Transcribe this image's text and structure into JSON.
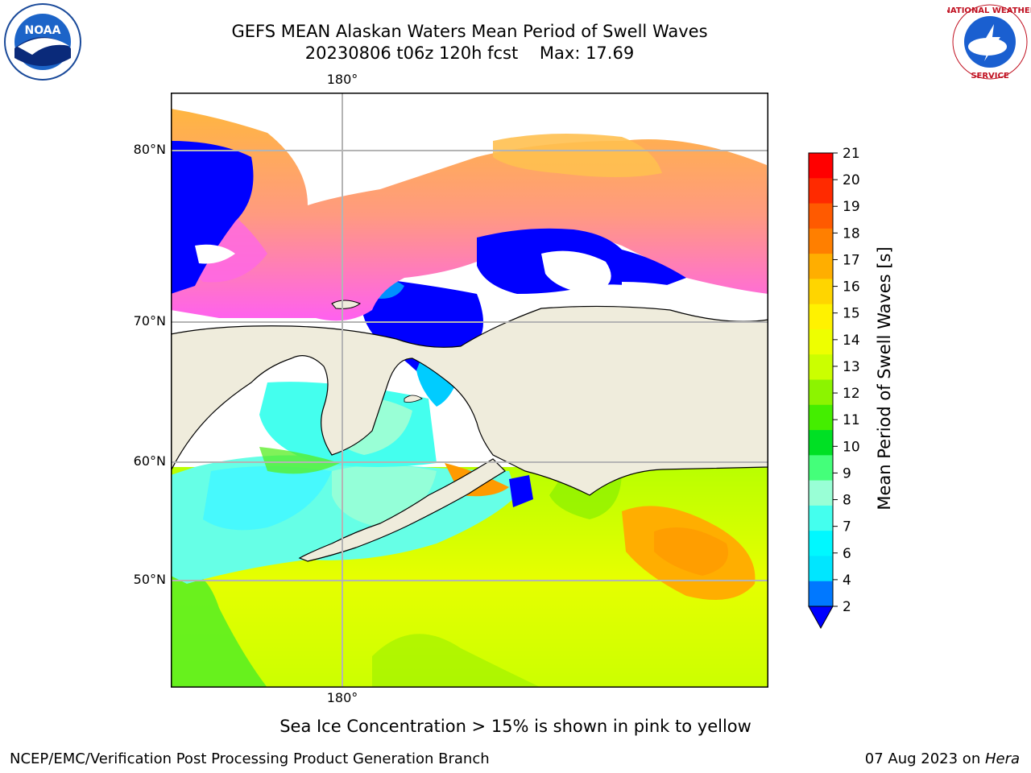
{
  "title": {
    "line1": "GEFS MEAN Alaskan Waters Mean Period of Swell Waves",
    "run": "20230806 t06z 120h fcst",
    "max": "Max: 17.69"
  },
  "logos": {
    "left": {
      "icon": "noaa-logo",
      "text": "NOAA"
    },
    "right": {
      "icon": "nws-logo",
      "text": "NATIONAL WEATHER SERVICE"
    }
  },
  "map": {
    "lon_label_top": "180°",
    "lon_label_bottom": "180°",
    "lat_labels": [
      "80°N",
      "70°N",
      "60°N",
      "50°N"
    ],
    "land_color": "#efecdc",
    "grid_color": "#b4b4b4"
  },
  "colorbar": {
    "label": "Mean Period of Swell Waves [s]",
    "ticks": [
      "21",
      "20",
      "19",
      "18",
      "17",
      "16",
      "15",
      "14",
      "13",
      "12",
      "11",
      "10",
      "9",
      "8",
      "7",
      "6",
      "4",
      "2"
    ],
    "colors": [
      "#ff0000",
      "#ff2a00",
      "#ff5a00",
      "#ff7f00",
      "#ffae00",
      "#ffd500",
      "#fff200",
      "#eeff00",
      "#cbff00",
      "#8cf400",
      "#44ee00",
      "#00e024",
      "#44ff7a",
      "#99ffd6",
      "#44ffee",
      "#00f8ff",
      "#00e6ff",
      "#0078ff"
    ],
    "underflow_color": "#0000ff"
  },
  "caption": "Sea Ice Concentration > 15% is shown in pink to yellow",
  "footer": {
    "left": "NCEP/EMC/Verification Post Processing Product Generation Branch",
    "date": "07 Aug 2023 on ",
    "host": "Hera"
  }
}
